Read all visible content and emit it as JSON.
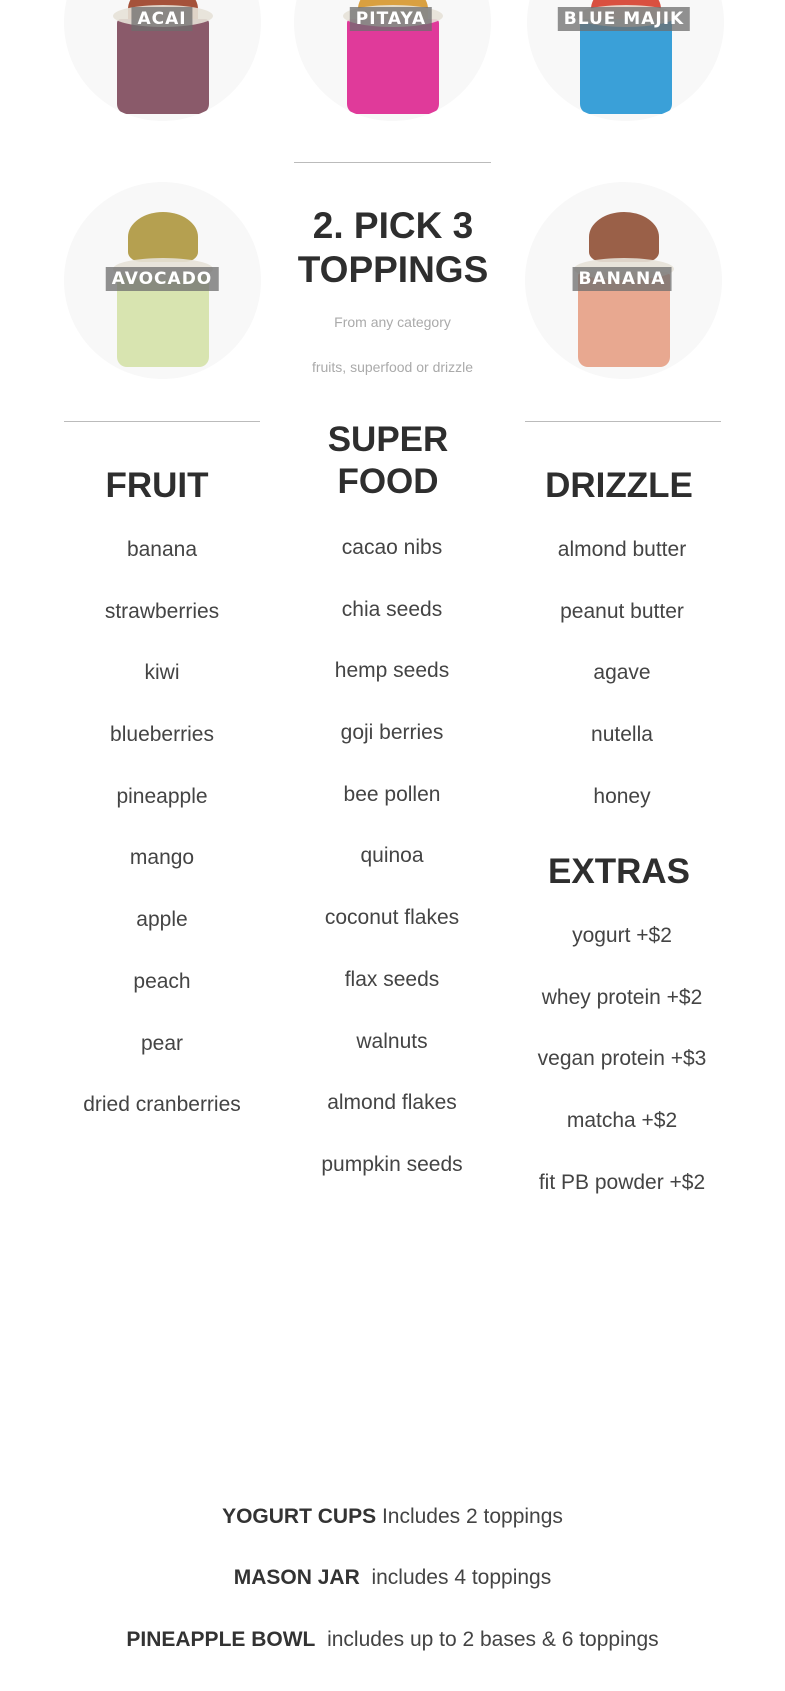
{
  "bases": [
    {
      "label": "ACAI",
      "color": "#8a5a6a"
    },
    {
      "label": "PITAYA",
      "color": "#e03a9a"
    },
    {
      "label": "BLUE MAJIK",
      "color": "#3aa0d8"
    },
    {
      "label": "AVOCADO",
      "color": "#d8e4b0"
    },
    {
      "label": "BANANA",
      "color": "#e8a890"
    }
  ],
  "step": {
    "title_line1": "2. PICK 3",
    "title_line2": "TOPPINGS",
    "subtitle1": "From any category",
    "subtitle2": "fruits, superfood or drizzle"
  },
  "fruit": {
    "heading": "FRUIT",
    "items": [
      "banana",
      "strawberries",
      "kiwi",
      "blueberries",
      "pineapple",
      "mango",
      "apple",
      "peach",
      "pear",
      "dried cranberries"
    ]
  },
  "superfood": {
    "heading_line1": "SUPER",
    "heading_line2": "FOOD",
    "items": [
      "cacao nibs",
      "chia seeds",
      "hemp seeds",
      "goji berries",
      "bee pollen",
      "quinoa",
      "coconut flakes",
      "flax seeds",
      "walnuts",
      "almond flakes",
      "pumpkin seeds"
    ]
  },
  "drizzle": {
    "heading": "DRIZZLE",
    "items": [
      "almond butter",
      "peanut butter",
      "agave",
      "nutella",
      "honey"
    ]
  },
  "extras": {
    "heading": "EXTRAS",
    "items": [
      "yogurt +$2",
      "whey protein +$2",
      "vegan protein +$3",
      "matcha +$2",
      "fit PB powder +$2"
    ]
  },
  "offers": [
    {
      "name": "YOGURT CUPS",
      "desc": "Includes 2 toppings"
    },
    {
      "name": "MASON JAR",
      "desc": "includes 4 toppings"
    },
    {
      "name": "PINEAPPLE BOWL",
      "desc": "includes up to 2 bases & 6 toppings"
    }
  ]
}
